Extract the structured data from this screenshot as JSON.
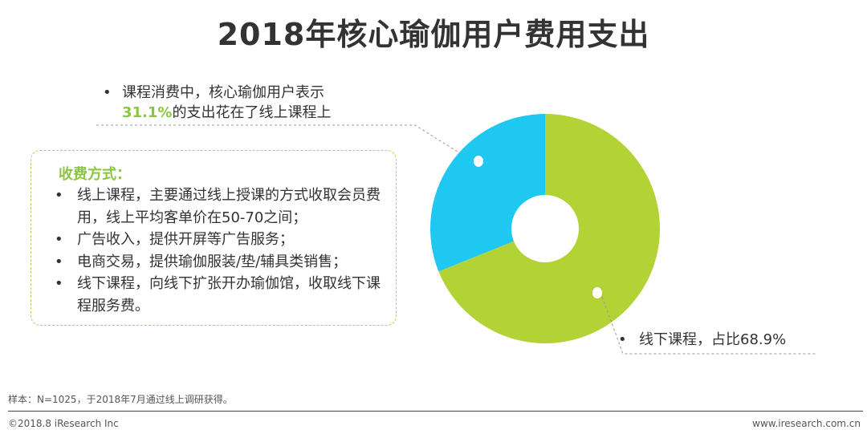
{
  "title": "2018年核心瑜伽用户费用支出",
  "callout_online": {
    "line1": "课程消费中，核心瑜伽用户表示",
    "highlight": "31.1%",
    "line2_rest": "的支出花在了线上课程上"
  },
  "payment_box": {
    "heading": "收费方式：",
    "items": [
      "线上课程，主要通过线上授课的方式收取会员费用，线上平均客单价在50-70之间；",
      "广告收入，提供开屏等广告服务；",
      "电商交易，提供瑜伽服装/垫/辅具类销售；",
      "线下课程，向线下扩张开办瑜伽馆，收取线下课程服务费。"
    ]
  },
  "callout_offline": "线下课程，占比68.9%",
  "footnote": "样本：N=1025，于2018年7月通过线上调研获得。",
  "copyright": "©2018.8 iResearch Inc",
  "website": "www.iresearch.com.cn",
  "colors": {
    "online": "#1ec8f0",
    "offline": "#b3d235",
    "highlight": "#8cc63f"
  },
  "chart_data": {
    "type": "pie",
    "series": [
      {
        "values": [
          31.1,
          68.9
        ]
      }
    ],
    "categories": [
      "线上课程",
      "线下课程"
    ]
  }
}
